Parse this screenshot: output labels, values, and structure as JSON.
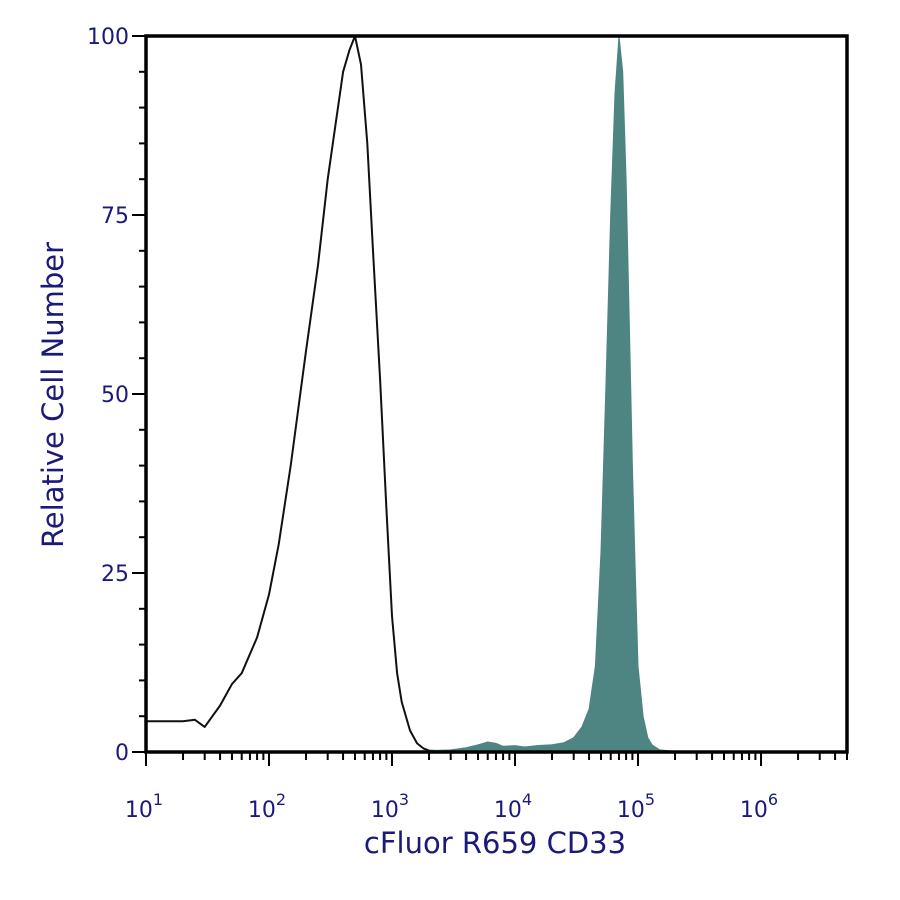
{
  "chart_data": {
    "type": "area",
    "xlabel": "cFluor R659 CD33",
    "ylabel": "Relative Cell Number",
    "xscale": "log",
    "xlim": [
      10,
      5000000
    ],
    "ylim": [
      0,
      100
    ],
    "grid": false,
    "x_ticks": [
      {
        "value": 10,
        "base": "10",
        "exp": "1"
      },
      {
        "value": 100,
        "base": "10",
        "exp": "2"
      },
      {
        "value": 1000,
        "base": "10",
        "exp": "3"
      },
      {
        "value": 10000,
        "base": "10",
        "exp": "4"
      },
      {
        "value": 100000,
        "base": "10",
        "exp": "5"
      },
      {
        "value": 1000000,
        "base": "10",
        "exp": "6"
      }
    ],
    "y_ticks": [
      {
        "value": 0,
        "label": "0"
      },
      {
        "value": 25,
        "label": "25"
      },
      {
        "value": 50,
        "label": "50"
      },
      {
        "value": 75,
        "label": "75"
      },
      {
        "value": 100,
        "label": "100"
      }
    ],
    "series": [
      {
        "style": "outline",
        "color": "#111111",
        "x": [
          10,
          20,
          25,
          30,
          40,
          50,
          60,
          80,
          100,
          120,
          150,
          200,
          250,
          300,
          350,
          400,
          450,
          500,
          560,
          630,
          700,
          800,
          900,
          1000,
          1100,
          1200,
          1400,
          1600,
          1800,
          2000,
          2500
        ],
        "y": [
          4.3,
          4.3,
          4.5,
          3.5,
          6.5,
          9.5,
          11,
          16,
          22,
          29,
          40,
          56,
          68,
          80,
          88,
          95,
          98,
          100,
          96,
          85,
          70,
          52,
          34,
          19,
          11,
          7,
          3,
          1.2,
          0.5,
          0.2,
          0.1
        ]
      },
      {
        "style": "filled",
        "color": "#4e8582",
        "x": [
          1500,
          2000,
          3000,
          4000,
          5000,
          6000,
          7000,
          8000,
          10000,
          12000,
          15000,
          20000,
          25000,
          30000,
          35000,
          40000,
          45000,
          50000,
          55000,
          60000,
          65000,
          70000,
          75000,
          80000,
          85000,
          90000,
          95000,
          100000,
          110000,
          120000,
          130000,
          150000,
          200000
        ],
        "y": [
          0.1,
          0.2,
          0.3,
          0.6,
          1.0,
          1.4,
          1.2,
          0.8,
          0.9,
          0.7,
          0.9,
          1.0,
          1.3,
          2.0,
          3.5,
          6.0,
          12,
          28,
          52,
          75,
          92,
          100,
          95,
          80,
          60,
          40,
          25,
          12,
          5,
          2,
          1,
          0.3,
          0.1
        ]
      }
    ]
  }
}
